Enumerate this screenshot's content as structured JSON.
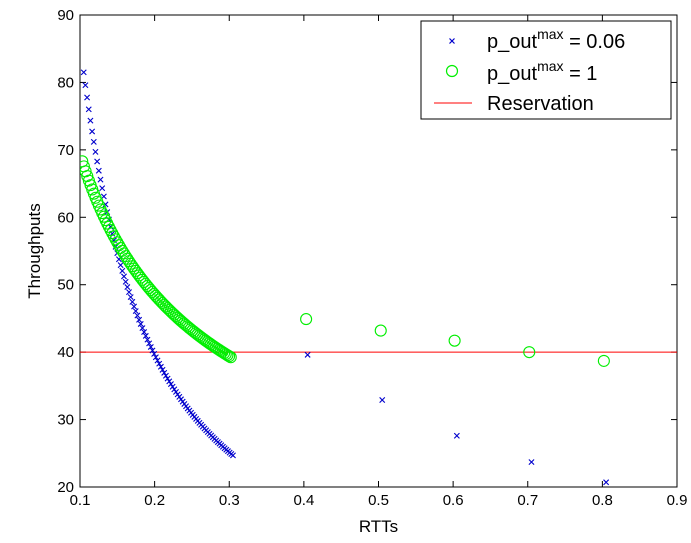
{
  "chart_data": {
    "type": "scatter",
    "title": "",
    "xlabel": "RTTs",
    "ylabel": "Throughputs",
    "xlim": [
      0.1,
      0.9
    ],
    "ylim": [
      20,
      90
    ],
    "xticks": [
      "0.1",
      "0.2",
      "0.3",
      "0.4",
      "0.5",
      "0.6",
      "0.7",
      "0.8",
      "0.9"
    ],
    "yticks": [
      "20",
      "30",
      "40",
      "50",
      "60",
      "70",
      "80",
      "90"
    ],
    "grid": false,
    "legend_position": "top-right",
    "legend": {
      "series1_base": "p_out",
      "series1_sup": "max",
      "series1_rest": " = 0.06",
      "series2_base": "p_out",
      "series2_sup": "max",
      "series2_rest": " = 1",
      "reference": "Reservation"
    },
    "series": [
      {
        "marker": "x",
        "color": "#0000cc",
        "curve": {
          "x_start": 0.105,
          "x_end": 0.305,
          "points": 90,
          "y_at_start": 81.5,
          "exponent": 1.12
        },
        "points": [
          [
            0.405,
            39.6
          ],
          [
            0.505,
            32.9
          ],
          [
            0.605,
            27.6
          ],
          [
            0.705,
            23.7
          ],
          [
            0.805,
            20.7
          ]
        ]
      },
      {
        "marker": "o",
        "color": "#00ee00",
        "curve": {
          "x_start": 0.103,
          "x_end": 0.302,
          "points": 90,
          "y_at_start": 68.3,
          "exponent": 0.515
        },
        "points": [
          [
            0.403,
            44.9
          ],
          [
            0.503,
            43.2
          ],
          [
            0.602,
            41.7
          ],
          [
            0.702,
            40.0
          ],
          [
            0.802,
            38.7
          ]
        ]
      }
    ],
    "reference_line": {
      "y": 40,
      "color": "#ff0000"
    }
  }
}
